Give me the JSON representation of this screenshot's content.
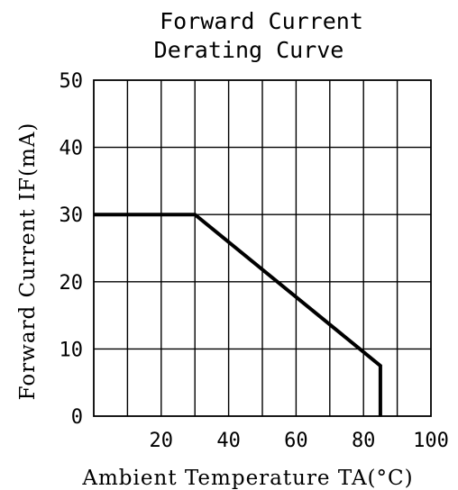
{
  "chart_data": {
    "type": "line",
    "title_lines": [
      "Forward Current",
      "Derating Curve"
    ],
    "ylabel": "Forward Current IF(mA)",
    "xlabel": "Ambient Temperature TA(°C)",
    "xlim": [
      0,
      100
    ],
    "ylim": [
      0,
      50
    ],
    "x_ticks": [
      20,
      40,
      60,
      80,
      100
    ],
    "x_tick_labels": [
      "20",
      "40",
      "60",
      "80",
      "100"
    ],
    "y_ticks": [
      0,
      10,
      20,
      30,
      40,
      50
    ],
    "y_tick_labels": [
      "0",
      "10",
      "20",
      "30",
      "40",
      "50"
    ],
    "x_grid": [
      10,
      20,
      30,
      40,
      50,
      60,
      70,
      80,
      90
    ],
    "y_grid": [
      10,
      20,
      30,
      40
    ],
    "grid": true,
    "legend": "none",
    "series": [
      {
        "x": [
          0,
          30,
          85,
          85
        ],
        "y": [
          30,
          30,
          7.5,
          0
        ]
      }
    ]
  }
}
